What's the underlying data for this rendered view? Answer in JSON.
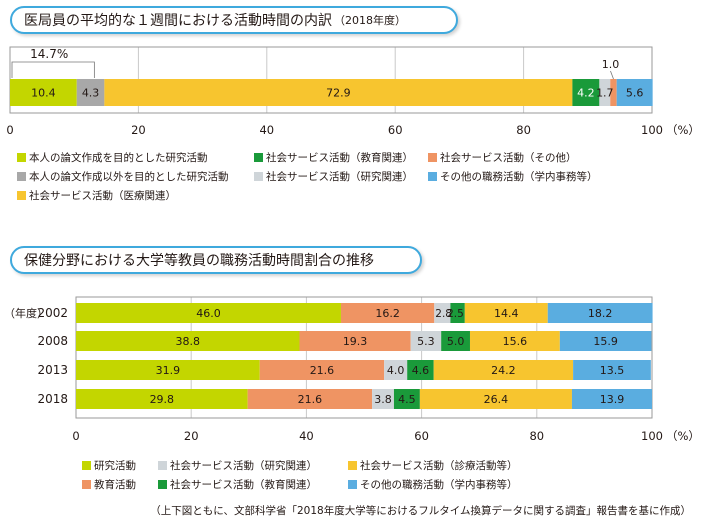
{
  "colors": {
    "yellow_green": "#c3d600",
    "gray": "#a8a8a8",
    "yellow": "#f7c52f",
    "green": "#1a9a3a",
    "orange": "#ef9463",
    "light_gray": "#cfd5d9",
    "blue": "#5aade0",
    "frame": "#3fa9dd"
  },
  "top": {
    "title_main": "医局員の平均的な１週間における活動時間の内訳",
    "title_small": "（2018年度）"
  },
  "bottom": {
    "title_main": "保健分野における大学等教員の職務活動時間割合の推移"
  },
  "source_note": "（上下図ともに、文部科学省「2018年度大学等におけるフルタイム換算データに関する調査」報告書を基に作成）",
  "chart_data": [
    {
      "type": "bar",
      "orientation": "horizontal-stacked",
      "title": "医局員の平均的な１週間における活動時間の内訳（2018年度）",
      "xlim": [
        0,
        100
      ],
      "xticks": [
        "0",
        "20",
        "40",
        "60",
        "80",
        "100"
      ],
      "xunit": "（%）",
      "segments": [
        {
          "name": "本人の論文作成を目的とした研究活動",
          "value": 10.4,
          "label": "10.4",
          "color": "#c3d600"
        },
        {
          "name": "本人の論文作成以外を目的とした研究活動",
          "value": 4.3,
          "label": "4.3",
          "color": "#a8a8a8"
        },
        {
          "name": "社会サービス活動（医療関連）",
          "value": 72.9,
          "label": "72.9",
          "color": "#f7c52f"
        },
        {
          "name": "社会サービス活動（教育関連）",
          "value": 4.2,
          "label": "4.2",
          "color": "#1a9a3a"
        },
        {
          "name": "社会サービス活動（研究関連）",
          "value": 1.7,
          "label": "1.7",
          "color": "#cfd5d9"
        },
        {
          "name": "社会サービス活動（その他）",
          "value": 1.0,
          "label": "1.0",
          "color": "#ef9463"
        },
        {
          "name": "その他の職務活動（学内事務等）",
          "value": 5.6,
          "label": "5.6",
          "color": "#5aade0"
        }
      ],
      "annotation_research_total": "14.7%",
      "legend": [
        {
          "label": "本人の論文作成を目的とした研究活動",
          "color": "#c3d600"
        },
        {
          "label": "社会サービス活動（教育関連）",
          "color": "#1a9a3a"
        },
        {
          "label": "社会サービス活動（その他）",
          "color": "#ef9463"
        },
        {
          "label": "本人の論文作成以外を目的とした研究活動",
          "color": "#a8a8a8"
        },
        {
          "label": "社会サービス活動（研究関連）",
          "color": "#cfd5d9"
        },
        {
          "label": "その他の職務活動（学内事務等）",
          "color": "#5aade0"
        },
        {
          "label": "社会サービス活動（医療関連）",
          "color": "#f7c52f"
        }
      ]
    },
    {
      "type": "bar",
      "orientation": "horizontal-stacked",
      "title": "保健分野における大学等教員の職務活動時間割合の推移",
      "xlim": [
        0,
        100
      ],
      "xticks": [
        "0",
        "20",
        "40",
        "60",
        "80",
        "100"
      ],
      "xunit": "（%）",
      "ylabel": "（年度）",
      "categories": [
        "2002",
        "2008",
        "2013",
        "2018"
      ],
      "series": [
        {
          "name": "研究活動",
          "color": "#c3d600",
          "values": [
            46.0,
            38.8,
            31.9,
            29.8
          ],
          "labels": [
            "46.0",
            "38.8",
            "31.9",
            "29.8"
          ]
        },
        {
          "name": "教育活動",
          "color": "#ef9463",
          "values": [
            16.2,
            19.3,
            21.6,
            21.6
          ],
          "labels": [
            "16.2",
            "19.3",
            "21.6",
            "21.6"
          ]
        },
        {
          "name": "社会サービス活動（研究関連）",
          "color": "#cfd5d9",
          "values": [
            2.8,
            5.3,
            4.0,
            3.8
          ],
          "labels": [
            "2.8",
            "5.3",
            "4.0",
            "3.8"
          ]
        },
        {
          "name": "社会サービス活動（教育関連）",
          "color": "#1a9a3a",
          "values": [
            2.5,
            5.0,
            4.6,
            4.5
          ],
          "labels": [
            "2.5",
            "5.0",
            "4.6",
            "4.5"
          ]
        },
        {
          "name": "社会サービス活動（診療活動等）",
          "color": "#f7c52f",
          "values": [
            14.4,
            15.6,
            24.2,
            26.4
          ],
          "labels": [
            "14.4",
            "15.6",
            "24.2",
            "26.4"
          ]
        },
        {
          "name": "その他の職務活動（学内事務等）",
          "color": "#5aade0",
          "values": [
            18.2,
            15.9,
            13.5,
            13.9
          ],
          "labels": [
            "18.2",
            "15.9",
            "13.5",
            "13.9"
          ]
        }
      ],
      "legend": [
        {
          "label": "研究活動",
          "color": "#c3d600"
        },
        {
          "label": "社会サービス活動（研究関連）",
          "color": "#cfd5d9"
        },
        {
          "label": "社会サービス活動（診療活動等）",
          "color": "#f7c52f"
        },
        {
          "label": "教育活動",
          "color": "#ef9463"
        },
        {
          "label": "社会サービス活動（教育関連）",
          "color": "#1a9a3a"
        },
        {
          "label": "その他の職務活動（学内事務等）",
          "color": "#5aade0"
        }
      ]
    }
  ]
}
